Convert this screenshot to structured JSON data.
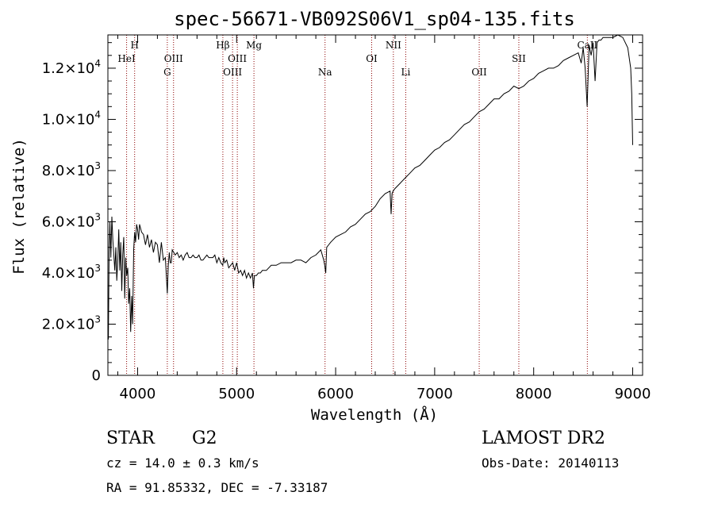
{
  "chart_data": {
    "type": "line",
    "title": "spec-56671-VB092S06V1_sp04-135.fits",
    "xlabel": "Wavelength (Å)",
    "ylabel": "Flux (relative)",
    "xlim": [
      3700,
      9100
    ],
    "ylim": [
      0,
      13300
    ],
    "x_ticks": [
      {
        "value": 4000,
        "label": "4000"
      },
      {
        "value": 5000,
        "label": "5000"
      },
      {
        "value": 6000,
        "label": "6000"
      },
      {
        "value": 7000,
        "label": "7000"
      },
      {
        "value": 8000,
        "label": "8000"
      },
      {
        "value": 9000,
        "label": "9000"
      }
    ],
    "y_ticks": [
      {
        "value": 0,
        "mant": "0",
        "exp": ""
      },
      {
        "value": 2000,
        "mant": "2.0×10",
        "exp": "3"
      },
      {
        "value": 4000,
        "mant": "4.0×10",
        "exp": "3"
      },
      {
        "value": 6000,
        "mant": "6.0×10",
        "exp": "3"
      },
      {
        "value": 8000,
        "mant": "8.0×10",
        "exp": "3"
      },
      {
        "value": 10000,
        "mant": "1.0×10",
        "exp": "4"
      },
      {
        "value": 12000,
        "mant": "1.2×10",
        "exp": "4"
      }
    ],
    "spectrum": {
      "x": [
        3705,
        3712,
        3720,
        3730,
        3740,
        3750,
        3760,
        3770,
        3780,
        3790,
        3800,
        3810,
        3820,
        3830,
        3840,
        3850,
        3860,
        3870,
        3880,
        3890,
        3900,
        3910,
        3920,
        3930,
        3940,
        3950,
        3960,
        3970,
        3980,
        3990,
        4000,
        4010,
        4020,
        4040,
        4060,
        4080,
        4100,
        4120,
        4140,
        4160,
        4180,
        4200,
        4220,
        4240,
        4260,
        4280,
        4300,
        4310,
        4320,
        4330,
        4340,
        4350,
        4380,
        4400,
        4420,
        4440,
        4460,
        4480,
        4500,
        4520,
        4540,
        4560,
        4580,
        4600,
        4620,
        4640,
        4660,
        4680,
        4700,
        4720,
        4740,
        4760,
        4780,
        4800,
        4820,
        4840,
        4860,
        4870,
        4880,
        4900,
        4920,
        4940,
        4960,
        4980,
        5000,
        5020,
        5040,
        5060,
        5080,
        5100,
        5120,
        5140,
        5160,
        5170,
        5180,
        5200,
        5220,
        5240,
        5260,
        5280,
        5300,
        5350,
        5400,
        5450,
        5500,
        5550,
        5600,
        5650,
        5700,
        5750,
        5800,
        5850,
        5880,
        5890,
        5900,
        5910,
        5930,
        5950,
        6000,
        6050,
        6100,
        6150,
        6200,
        6250,
        6300,
        6350,
        6400,
        6450,
        6500,
        6550,
        6560,
        6570,
        6580,
        6600,
        6650,
        6700,
        6750,
        6800,
        6850,
        6900,
        6950,
        7000,
        7050,
        7100,
        7150,
        7200,
        7250,
        7300,
        7350,
        7400,
        7450,
        7500,
        7550,
        7600,
        7650,
        7700,
        7750,
        7800,
        7850,
        7900,
        7950,
        8000,
        8050,
        8100,
        8150,
        8200,
        8250,
        8300,
        8350,
        8400,
        8450,
        8480,
        8500,
        8520,
        8540,
        8560,
        8580,
        8600,
        8620,
        8640,
        8660,
        8680,
        8700,
        8750,
        8800,
        8850,
        8900,
        8950,
        8980,
        8990,
        9000
      ],
      "y": [
        1400,
        4800,
        6000,
        4600,
        6200,
        5300,
        4700,
        4100,
        5000,
        3700,
        4500,
        5700,
        4100,
        5200,
        3300,
        4700,
        5400,
        3000,
        4600,
        3900,
        4200,
        2800,
        3400,
        1700,
        3100,
        2000,
        4900,
        5600,
        5200,
        5900,
        5700,
        5300,
        5900,
        5600,
        5500,
        5100,
        5500,
        5000,
        5300,
        4800,
        5200,
        5100,
        4400,
        5200,
        4500,
        4600,
        3200,
        4300,
        4800,
        4400,
        4400,
        4900,
        4700,
        4800,
        4600,
        4700,
        4500,
        4700,
        4800,
        4600,
        4600,
        4700,
        4600,
        4600,
        4700,
        4500,
        4500,
        4600,
        4700,
        4600,
        4600,
        4600,
        4700,
        4400,
        4600,
        4400,
        4300,
        4600,
        4400,
        4500,
        4200,
        4300,
        4400,
        4100,
        4400,
        4000,
        4100,
        3900,
        4100,
        3800,
        4000,
        3800,
        4000,
        3400,
        3900,
        3900,
        4000,
        4000,
        4100,
        4100,
        4100,
        4300,
        4300,
        4400,
        4400,
        4400,
        4500,
        4500,
        4400,
        4600,
        4700,
        4900,
        4500,
        4300,
        4000,
        5000,
        5100,
        5200,
        5400,
        5500,
        5600,
        5800,
        5900,
        6100,
        6300,
        6400,
        6600,
        6900,
        7100,
        7200,
        6300,
        7100,
        7200,
        7300,
        7500,
        7700,
        7900,
        8100,
        8200,
        8400,
        8600,
        8800,
        8900,
        9100,
        9200,
        9400,
        9600,
        9800,
        9900,
        10100,
        10300,
        10400,
        10600,
        10800,
        10800,
        11000,
        11100,
        11300,
        11200,
        11300,
        11500,
        11600,
        11800,
        11900,
        12000,
        12000,
        12100,
        12300,
        12400,
        12500,
        12600,
        12200,
        12800,
        12000,
        10500,
        12900,
        12500,
        13000,
        11500,
        13000,
        13100,
        13100,
        13200,
        13200,
        13200,
        13300,
        13200,
        12800,
        12000,
        11000,
        9000
      ]
    },
    "lines": [
      {
        "name": "HeI",
        "x": 3889,
        "row": 2
      },
      {
        "name": "H",
        "x": 3970,
        "row": 1
      },
      {
        "name": "G",
        "x": 4300,
        "row": 3
      },
      {
        "name": "OIII",
        "x": 4363,
        "row": 2
      },
      {
        "name": "Hβ",
        "x": 4861,
        "row": 1
      },
      {
        "name": "OIII",
        "x": 4959,
        "row": 3
      },
      {
        "name": "OIII",
        "x": 5007,
        "row": 2
      },
      {
        "name": "Mg",
        "x": 5175,
        "row": 1
      },
      {
        "name": "Na",
        "x": 5893,
        "row": 3
      },
      {
        "name": "OI",
        "x": 6364,
        "row": 2
      },
      {
        "name": "NII",
        "x": 6583,
        "row": 1
      },
      {
        "name": "Li",
        "x": 6708,
        "row": 3
      },
      {
        "name": "OII",
        "x": 7450,
        "row": 3
      },
      {
        "name": "SII",
        "x": 7850,
        "row": 2
      },
      {
        "name": "CaII",
        "x": 8542,
        "row": 1
      }
    ]
  },
  "info": {
    "object_class": "STAR",
    "subclass": "G2",
    "survey": "LAMOST DR2",
    "cz": "cz = 14.0 ± 0.3 km/s",
    "obs_date": "Obs-Date: 20140113",
    "coords": "RA =  91.85332, DEC =  -7.33187"
  },
  "colors": {
    "axis": "#000000",
    "spectrum": "#000000",
    "line_marker": "#8b0000"
  }
}
